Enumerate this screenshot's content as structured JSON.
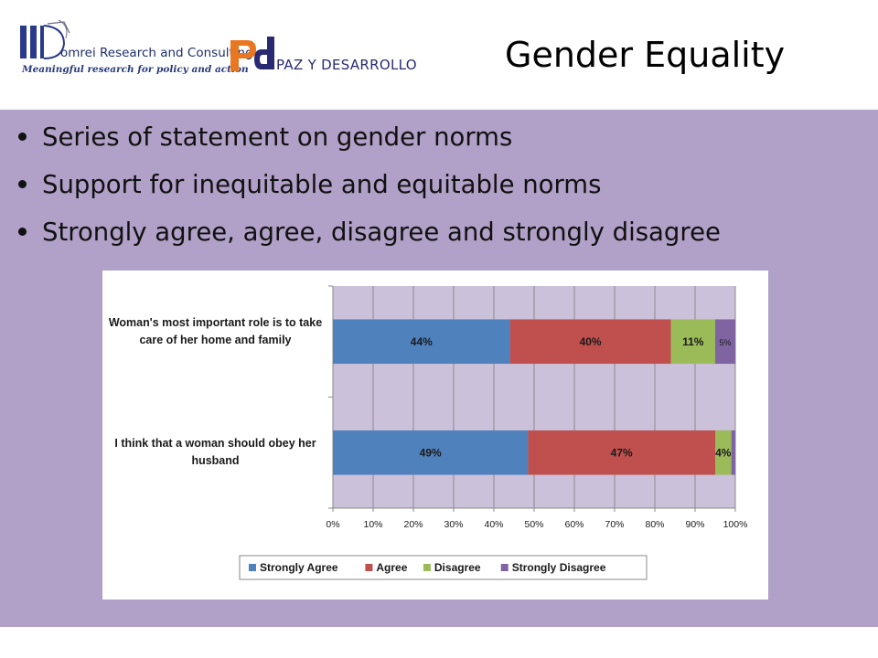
{
  "slide": {
    "title": "Gender Equality",
    "bullets": [
      "Series of statement on gender norms",
      "Support for inequitable and equitable norms",
      "Strongly agree, agree, disagree and strongly disagree"
    ]
  },
  "logos": {
    "domrei_name": "omrei Research and Consulting",
    "domrei_tagline": "Meaningful research for policy and action",
    "paz_mark": "pd",
    "paz_name": "PAZ Y DESARROLLO"
  },
  "colors": {
    "content_background": "#b1a0c7",
    "plot_background": "#ccc1da",
    "strongly_agree": "#4f81bd",
    "agree": "#c0504d",
    "disagree": "#9bbb59",
    "strongly_disagree": "#8064a2"
  },
  "chart_data": {
    "type": "bar",
    "orientation": "horizontal",
    "stacked": true,
    "categories": [
      "Woman's most important role is to take care of her home and family",
      "I think that a woman should obey her husband"
    ],
    "series": [
      {
        "name": "Strongly Agree",
        "values": [
          44,
          48.5
        ],
        "labels": [
          "44%",
          "49%"
        ]
      },
      {
        "name": "Agree",
        "values": [
          40,
          46.5
        ],
        "labels": [
          "40%",
          "47%"
        ]
      },
      {
        "name": "Disagree",
        "values": [
          11,
          4
        ],
        "labels": [
          "11%",
          "4%"
        ]
      },
      {
        "name": "Strongly Disagree",
        "values": [
          5,
          1
        ],
        "labels": [
          "5%",
          ""
        ]
      }
    ],
    "xlim": [
      0,
      100
    ],
    "xticks": [
      "0%",
      "10%",
      "20%",
      "30%",
      "40%",
      "50%",
      "60%",
      "70%",
      "80%",
      "90%",
      "100%"
    ],
    "grid": true,
    "legend": "bottom"
  }
}
